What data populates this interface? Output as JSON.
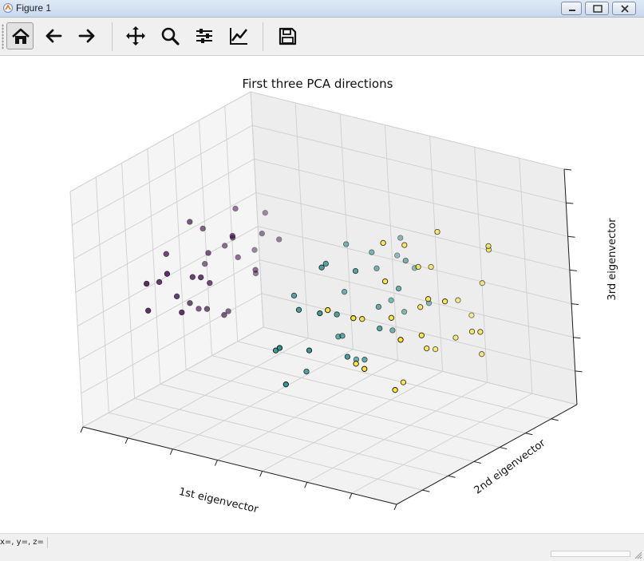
{
  "window": {
    "title": "Figure 1",
    "controls": {
      "minimize": "minimize-icon",
      "maximize": "maximize-icon",
      "close": "close-icon"
    }
  },
  "toolbar": {
    "buttons": [
      {
        "name": "home",
        "icon": "home-icon"
      },
      {
        "name": "back",
        "icon": "arrow-left-icon"
      },
      {
        "name": "forward",
        "icon": "arrow-right-icon"
      },
      {
        "name": "pan",
        "icon": "move-icon"
      },
      {
        "name": "zoom",
        "icon": "magnifier-icon"
      },
      {
        "name": "subplots",
        "icon": "sliders-icon"
      },
      {
        "name": "customize",
        "icon": "line-chart-icon"
      },
      {
        "name": "save",
        "icon": "floppy-disk-icon"
      }
    ]
  },
  "status": {
    "coords": "x=, y=, z="
  },
  "colors": {
    "class0": "#440154",
    "class1": "#21918c",
    "class2": "#fde725",
    "grid": "#cfcfcf",
    "pane": "#f2f2f2"
  },
  "chart_data": {
    "type": "scatter",
    "projection": "3d",
    "title": "First three PCA directions",
    "xlabel": "1st eigenvector",
    "ylabel": "2nd eigenvector",
    "zlabel": "3rd eigenvector",
    "tick_labels": "hidden",
    "grid": true,
    "series": [
      {
        "color": "#440154",
        "points": [
          [
            -3.0,
            -0.3,
            0.4
          ],
          [
            -2.9,
            0.1,
            0.5
          ],
          [
            -2.8,
            -0.5,
            0.2
          ],
          [
            -2.7,
            0.4,
            0.6
          ],
          [
            -2.9,
            -0.6,
            -0.1
          ],
          [
            -2.6,
            0.0,
            0.3
          ],
          [
            -2.5,
            0.3,
            0.1
          ],
          [
            -2.7,
            -0.2,
            -0.2
          ],
          [
            -2.4,
            0.2,
            0.4
          ],
          [
            -2.6,
            -0.4,
            0.0
          ],
          [
            -2.8,
            0.3,
            0.2
          ],
          [
            -2.5,
            -0.1,
            -0.3
          ],
          [
            -2.3,
            0.5,
            0.3
          ],
          [
            -2.4,
            -0.3,
            0.2
          ],
          [
            -2.2,
            0.1,
            0.5
          ],
          [
            -2.9,
            0.0,
            -0.4
          ],
          [
            -2.7,
            0.6,
            0.0
          ],
          [
            -2.3,
            -0.5,
            -0.1
          ],
          [
            -2.6,
            0.2,
            -0.5
          ],
          [
            -2.2,
            -0.2,
            0.1
          ],
          [
            -3.1,
            0.2,
            0.0
          ],
          [
            -2.5,
            0.5,
            -0.2
          ],
          [
            -2.1,
            0.3,
            0.0
          ],
          [
            -2.4,
            -0.6,
            0.4
          ],
          [
            -2.8,
            -0.1,
            0.7
          ],
          [
            -2.0,
            -0.4,
            0.3
          ],
          [
            -2.6,
            0.7,
            0.4
          ],
          [
            -2.3,
            0.0,
            -0.4
          ],
          [
            -2.7,
            -0.7,
            0.3
          ],
          [
            -2.1,
            0.6,
            0.2
          ]
        ]
      },
      {
        "color": "#21918c",
        "points": [
          [
            0.6,
            0.4,
            0.3
          ],
          [
            0.8,
            -0.2,
            0.1
          ],
          [
            0.5,
            0.6,
            -0.2
          ],
          [
            1.0,
            0.2,
            0.0
          ],
          [
            0.3,
            -0.4,
            0.2
          ],
          [
            0.9,
            -0.6,
            -0.1
          ],
          [
            0.2,
            0.1,
            -0.4
          ],
          [
            1.1,
            0.5,
            0.4
          ],
          [
            0.4,
            -0.1,
            0.6
          ],
          [
            0.7,
            0.8,
            0.1
          ],
          [
            0.0,
            0.3,
            0.0
          ],
          [
            1.2,
            -0.3,
            -0.3
          ],
          [
            0.5,
            -0.7,
            -0.5
          ],
          [
            0.8,
            0.1,
            -0.6
          ],
          [
            -0.2,
            -0.2,
            0.2
          ],
          [
            1.3,
            0.3,
            0.2
          ],
          [
            0.6,
            0.7,
            0.5
          ],
          [
            0.1,
            -0.6,
            -0.2
          ],
          [
            0.9,
            0.4,
            -0.4
          ],
          [
            0.3,
            0.5,
            0.4
          ],
          [
            1.0,
            -0.5,
            0.3
          ],
          [
            0.4,
            0.2,
            -0.7
          ],
          [
            0.7,
            -0.3,
            0.7
          ],
          [
            1.4,
            0.0,
            -0.1
          ],
          [
            0.2,
            -0.3,
            -0.6
          ],
          [
            0.8,
            0.6,
            -0.3
          ],
          [
            -0.1,
            0.4,
            0.5
          ],
          [
            1.1,
            -0.1,
            0.6
          ],
          [
            0.6,
            -0.8,
            0.0
          ],
          [
            0.5,
            0.0,
            -0.3
          ],
          [
            1.2,
            0.7,
            -0.2
          ],
          [
            0.3,
            0.8,
            0.2
          ]
        ]
      },
      {
        "color": "#fde725",
        "points": [
          [
            2.0,
            0.2,
            0.6
          ],
          [
            2.3,
            -0.3,
            0.3
          ],
          [
            2.1,
            0.6,
            0.0
          ],
          [
            2.6,
            0.0,
            0.4
          ],
          [
            1.8,
            -0.5,
            -0.2
          ],
          [
            2.4,
            0.4,
            -0.3
          ],
          [
            2.8,
            -0.2,
            0.1
          ],
          [
            1.9,
            0.1,
            0.9
          ],
          [
            2.2,
            -0.7,
            0.5
          ],
          [
            2.5,
            0.7,
            0.2
          ],
          [
            3.0,
            0.3,
            -0.1
          ],
          [
            1.7,
            0.5,
            0.4
          ],
          [
            2.7,
            -0.5,
            -0.4
          ],
          [
            2.1,
            -0.1,
            -0.6
          ],
          [
            3.2,
            -0.1,
            0.5
          ],
          [
            2.3,
            0.3,
            1.0
          ],
          [
            1.6,
            -0.3,
            0.2
          ],
          [
            2.9,
            0.6,
            0.7
          ],
          [
            2.0,
            0.8,
            -0.3
          ],
          [
            2.6,
            -0.8,
            0.0
          ],
          [
            3.4,
            0.2,
            0.0
          ],
          [
            2.4,
            -0.4,
            0.8
          ],
          [
            1.9,
            0.4,
            -0.5
          ],
          [
            3.1,
            -0.6,
            0.3
          ],
          [
            2.2,
            0.1,
            0.2
          ],
          [
            2.8,
            0.5,
            -0.5
          ],
          [
            1.8,
            -0.8,
            0.6
          ],
          [
            3.3,
            0.4,
            0.9
          ],
          [
            2.5,
            0.0,
            -0.2
          ],
          [
            2.0,
            -0.2,
            1.1
          ]
        ]
      }
    ]
  }
}
